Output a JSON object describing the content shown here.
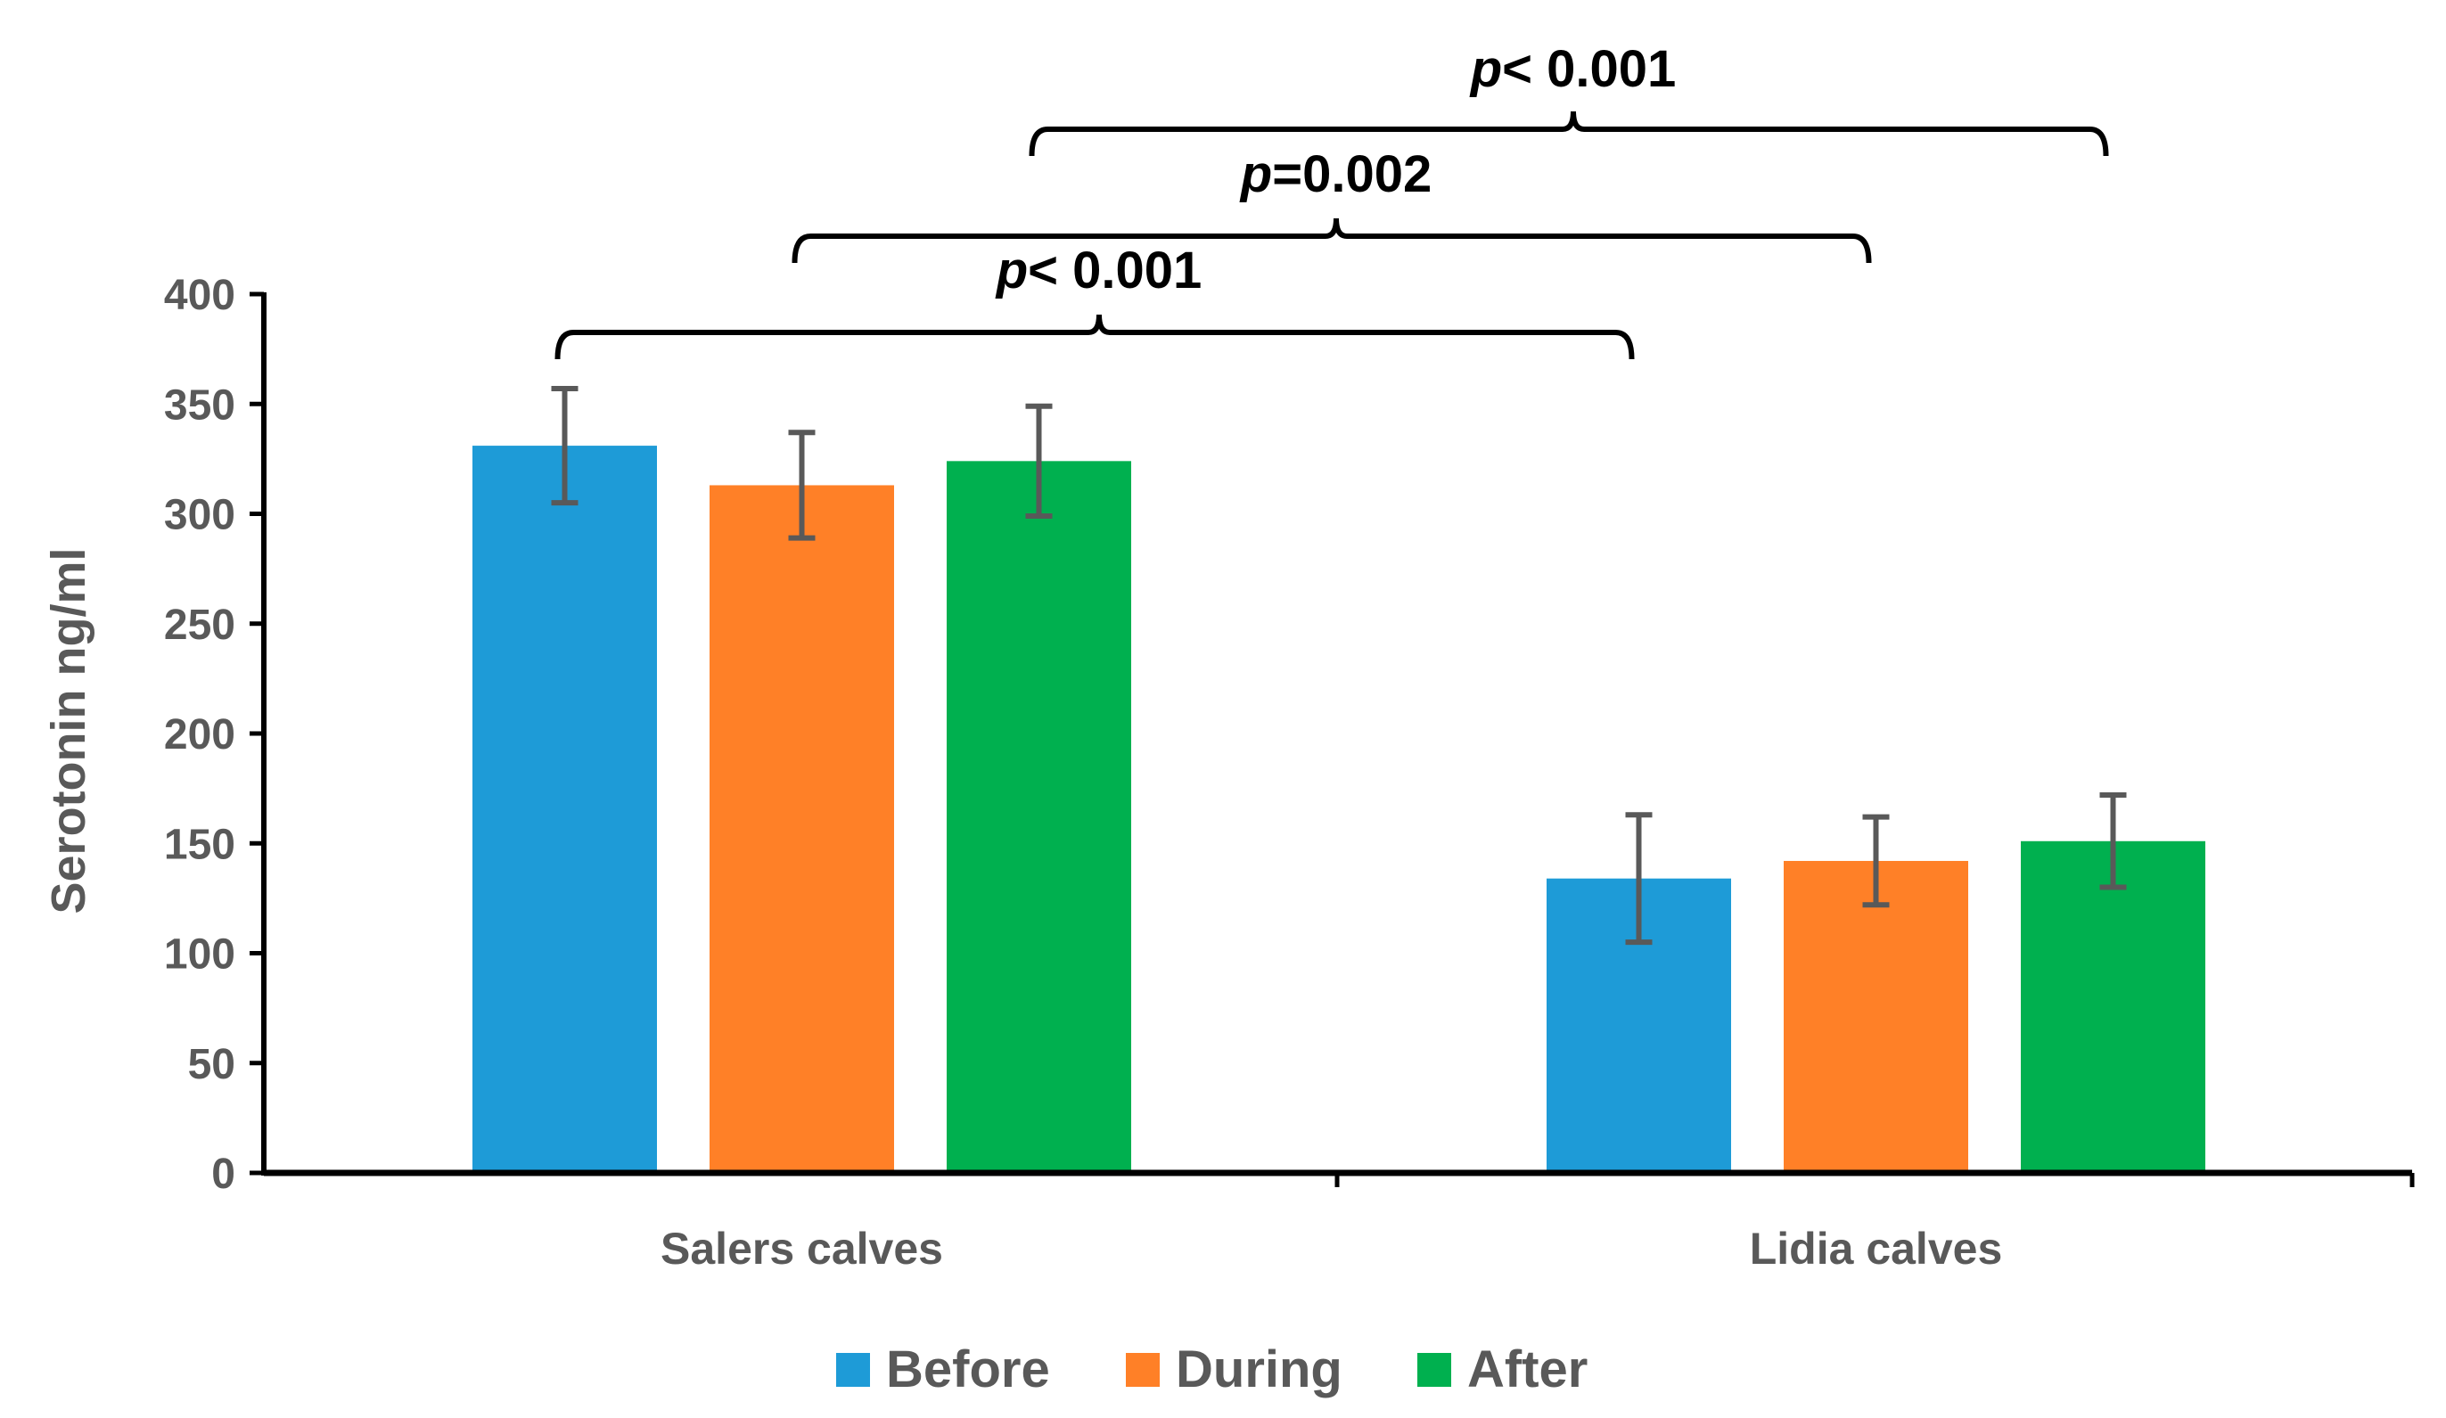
{
  "chart_data": {
    "type": "bar",
    "title": "",
    "xlabel": "",
    "ylabel": "Serotonin  ng/ml",
    "ylim": [
      0,
      400
    ],
    "yticks": [
      "0",
      "50",
      "100",
      "150",
      "200",
      "250",
      "300",
      "350",
      "400"
    ],
    "categories": [
      "Salers calves",
      "Lidia calves"
    ],
    "series": [
      {
        "name": "Before",
        "color": "#1E9BD7",
        "values": [
          331,
          134
        ],
        "errors": [
          26,
          29
        ]
      },
      {
        "name": "During",
        "color": "#FF8027",
        "values": [
          313,
          142
        ],
        "errors": [
          24,
          20
        ]
      },
      {
        "name": "After",
        "color": "#00B04F",
        "values": [
          324,
          151
        ],
        "errors": [
          25,
          21
        ]
      }
    ],
    "legend_position": "bottom",
    "significance": [
      {
        "italic": "p",
        "rest": "< 0.001",
        "from": {
          "category": 0,
          "series": 0
        },
        "to": {
          "category": 1,
          "series": 0
        }
      },
      {
        "italic": "p",
        "rest": "=0.002",
        "from": {
          "category": 0,
          "series": 1
        },
        "to": {
          "category": 1,
          "series": 1
        }
      },
      {
        "italic": "p",
        "rest": "< 0.001",
        "from": {
          "category": 0,
          "series": 2
        },
        "to": {
          "category": 1,
          "series": 2
        }
      }
    ]
  }
}
